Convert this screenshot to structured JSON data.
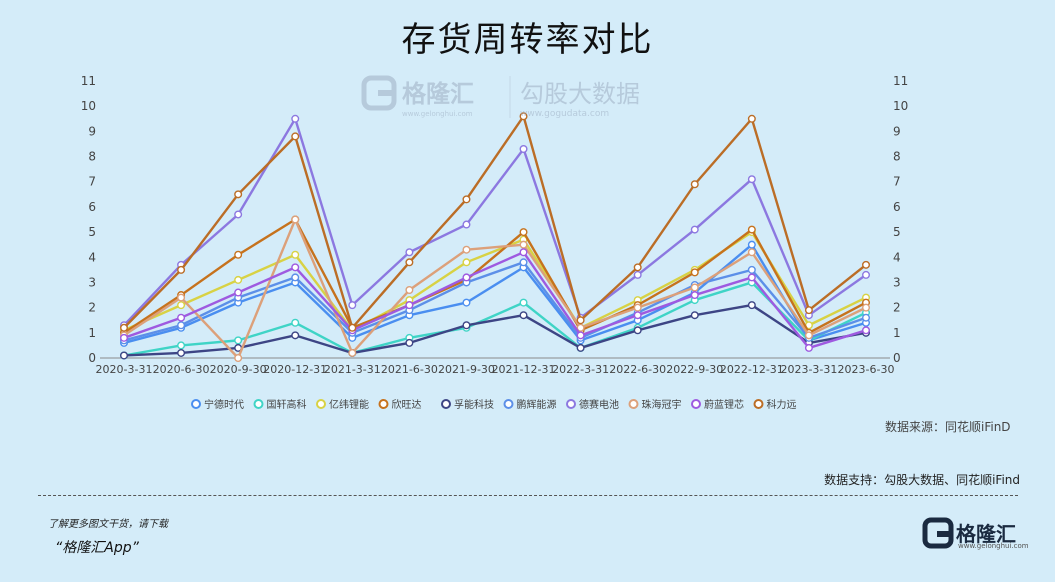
{
  "chart_data": {
    "type": "line",
    "title": "存货周转率对比",
    "categories": [
      "2020-3-31",
      "2020-6-30",
      "2020-9-30",
      "2020-12-31",
      "2021-3-31",
      "2021-6-30",
      "2021-9-30",
      "2021-12-31",
      "2022-3-31",
      "2022-6-30",
      "2022-9-30",
      "2022-12-31",
      "2023-3-31",
      "2023-6-30"
    ],
    "ylim": [
      0,
      11
    ],
    "y_ticks": [
      "0",
      "1",
      "2",
      "3",
      "4",
      "5",
      "6",
      "7",
      "8",
      "9",
      "10",
      "11"
    ],
    "grid": false,
    "legend_position": "bottom",
    "series": [
      {
        "name": "宁德时代",
        "color": "#4a8ef0",
        "values": [
          0.6,
          1.2,
          2.2,
          3.0,
          0.8,
          1.7,
          2.2,
          3.6,
          0.7,
          1.5,
          2.6,
          4.5,
          0.7,
          1.4
        ]
      },
      {
        "name": "国轩高科",
        "color": "#3fd4c6",
        "values": [
          0.1,
          0.5,
          0.7,
          1.4,
          0.2,
          0.8,
          1.2,
          2.2,
          0.4,
          1.2,
          2.3,
          3.0,
          0.7,
          1.8
        ]
      },
      {
        "name": "亿纬锂能",
        "color": "#d8d244",
        "values": [
          1.1,
          2.1,
          3.1,
          4.1,
          1.1,
          2.3,
          3.8,
          4.7,
          1.2,
          2.3,
          3.5,
          5.0,
          1.3,
          2.4
        ]
      },
      {
        "name": "欣旺达",
        "color": "#c6721d",
        "values": [
          1.0,
          2.5,
          4.1,
          5.5,
          1.2,
          2.1,
          3.1,
          5.0,
          1.1,
          2.1,
          3.4,
          5.1,
          1.0,
          2.2
        ]
      },
      {
        "name": "孚能科技",
        "color": "#3d4585",
        "values": [
          0.1,
          0.2,
          0.4,
          0.9,
          0.2,
          0.6,
          1.3,
          1.7,
          0.4,
          1.1,
          1.7,
          2.1,
          0.6,
          1.0
        ]
      },
      {
        "name": "鹏辉能源",
        "color": "#5c8fe8",
        "values": [
          0.7,
          1.3,
          2.4,
          3.2,
          1.0,
          1.9,
          3.0,
          3.8,
          0.8,
          1.8,
          2.9,
          3.5,
          0.8,
          1.6
        ]
      },
      {
        "name": "德赛电池",
        "color": "#8c78e0",
        "values": [
          1.3,
          3.7,
          5.7,
          9.5,
          2.1,
          4.2,
          5.3,
          8.3,
          1.6,
          3.3,
          5.1,
          7.1,
          1.7,
          3.3
        ]
      },
      {
        "name": "珠海冠宇",
        "color": "#dca07a",
        "values": [
          0.9,
          2.4,
          0.0,
          5.5,
          0.2,
          2.7,
          4.3,
          4.5,
          1.2,
          2.0,
          2.8,
          4.2,
          0.9,
          2.0
        ]
      },
      {
        "name": "蔚蓝锂芯",
        "color": "#9e5ae0",
        "values": [
          0.8,
          1.6,
          2.6,
          3.6,
          1.1,
          2.1,
          3.2,
          4.2,
          0.9,
          1.7,
          2.5,
          3.2,
          0.4,
          1.1
        ]
      },
      {
        "name": "科力远",
        "color": "#bb6d26",
        "values": [
          1.2,
          3.5,
          6.5,
          8.8,
          1.2,
          3.8,
          6.3,
          9.6,
          1.5,
          3.6,
          6.9,
          9.5,
          1.9,
          3.7
        ]
      }
    ]
  },
  "watermark": {
    "brand": "格隆汇",
    "brand_domain": "www.gelonghui.com",
    "partner": "勾股大数据",
    "partner_domain": "www.gogudata.com"
  },
  "source_note": "数据来源：同花顺iFinD",
  "support_note": "数据支持：勾股大数据、同花顺iFind",
  "footer": {
    "line1": "了解更多图文干货，请下载",
    "line2": "“格隆汇App”"
  },
  "brand_logo": {
    "text": "格隆汇",
    "sub": "www.gelonghui.com"
  }
}
